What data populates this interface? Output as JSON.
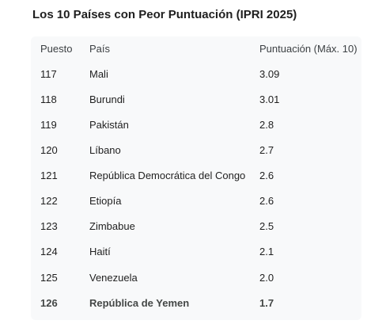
{
  "title": "Los 10 Países con Peor Puntuación (IPRI 2025)",
  "table": {
    "headers": [
      "Puesto",
      "País",
      "Puntuación (Máx. 10)"
    ],
    "rows": [
      [
        "117",
        "Mali",
        "3.09"
      ],
      [
        "118",
        "Burundi",
        "3.01"
      ],
      [
        "119",
        "Pakistán",
        "2.8"
      ],
      [
        "120",
        "Líbano",
        "2.7"
      ],
      [
        "121",
        "República Democrática del Congo",
        "2.6"
      ],
      [
        "122",
        "Etiopía",
        "2.6"
      ],
      [
        "123",
        "Zimbabue",
        "2.5"
      ],
      [
        "124",
        "Haití",
        "2.1"
      ],
      [
        "125",
        "Venezuela",
        "2.0"
      ],
      [
        "126",
        "República de Yemen",
        "1.7"
      ]
    ]
  }
}
